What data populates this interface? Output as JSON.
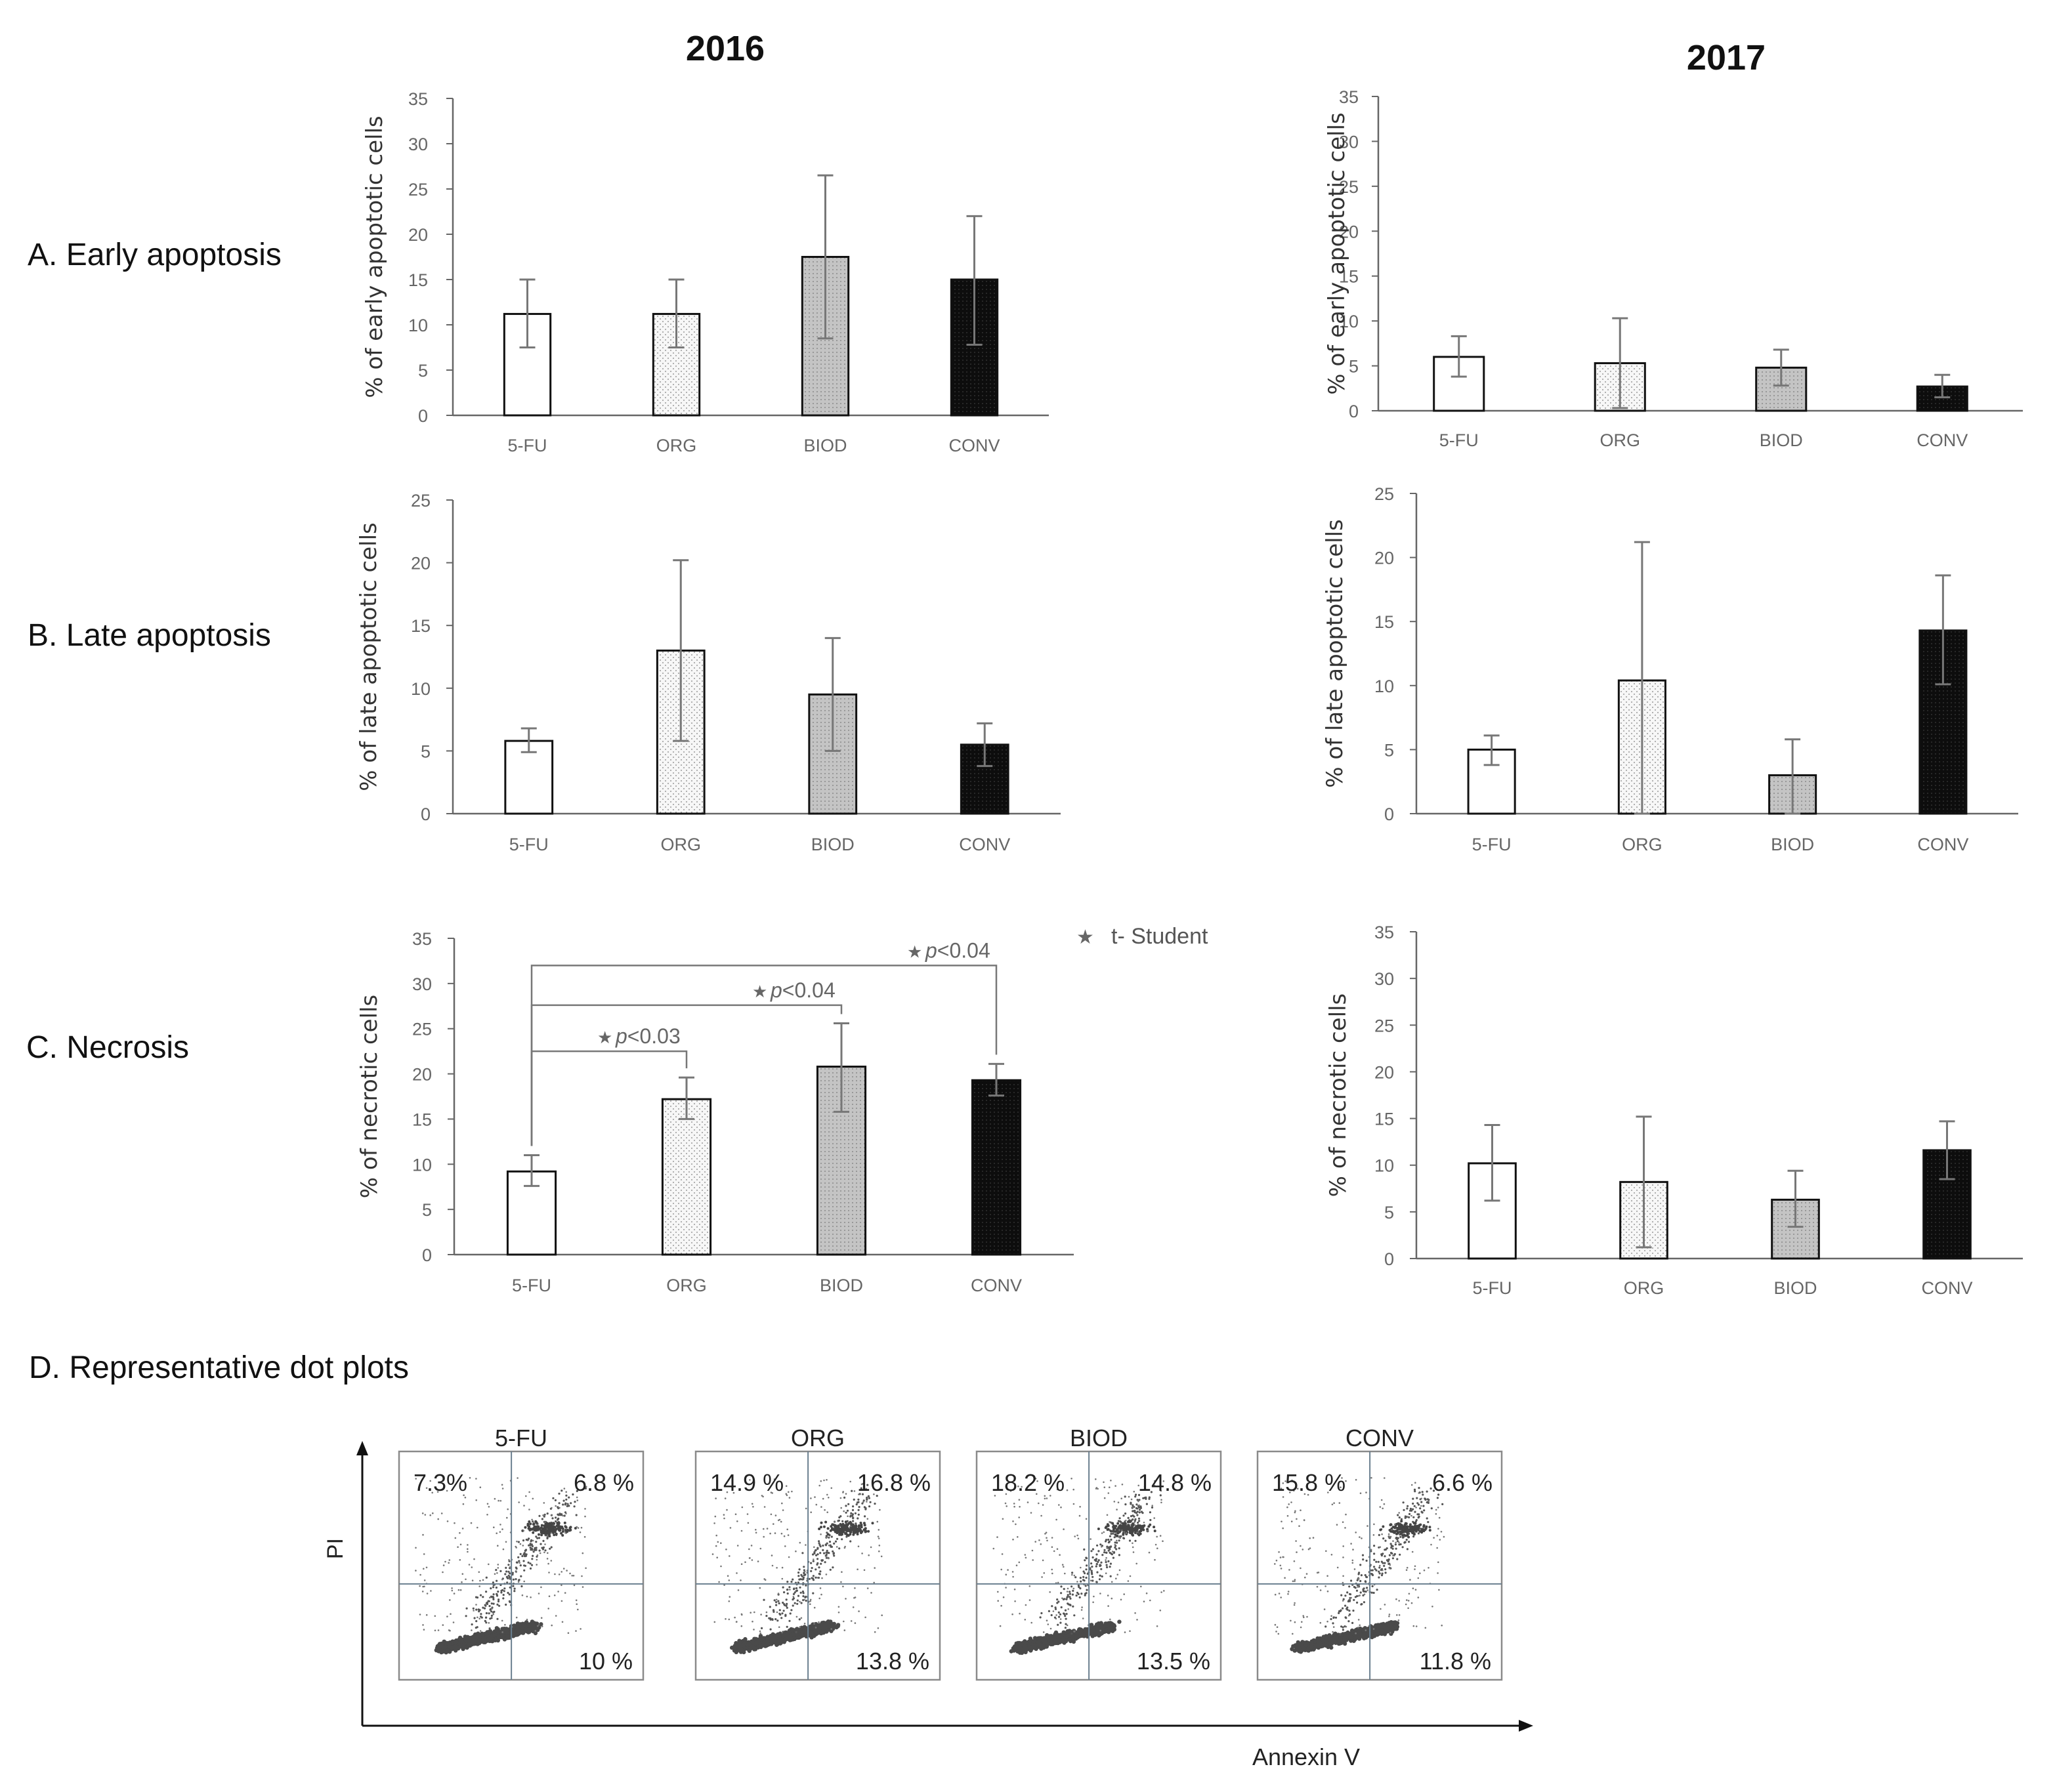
{
  "header": {
    "year_left": "2016",
    "year_right": "2017"
  },
  "rows": [
    {
      "label": "A. Early apoptosis"
    },
    {
      "label": "B. Late apoptosis"
    },
    {
      "label": "C. Necrosis"
    },
    {
      "label": "D. Representative  dot plots"
    }
  ],
  "legend": {
    "symbol": "★",
    "text": "t- Student"
  },
  "colors": {
    "five_fu": "#ffffff",
    "org": "#f2f2f2",
    "biod": "#c8c8c8",
    "conv": "#111111",
    "axis": "#555555"
  },
  "chart_data": [
    {
      "id": "A-2016",
      "type": "bar",
      "title": "",
      "ylabel": "% of early apoptotic cells",
      "ylim": [
        0,
        35
      ],
      "yticks": [
        0,
        5,
        10,
        15,
        20,
        25,
        30,
        35
      ],
      "categories": [
        "5-FU",
        "ORG",
        "BIOD",
        "CONV"
      ],
      "values": [
        11.2,
        11.2,
        17.5,
        15.0
      ],
      "err_upper": [
        15.0,
        15.0,
        26.5,
        22.0
      ],
      "err_lower": [
        7.5,
        7.5,
        8.5,
        7.8
      ]
    },
    {
      "id": "A-2017",
      "type": "bar",
      "title": "",
      "ylabel": "% of early apoptotic cells",
      "ylim": [
        0,
        35
      ],
      "yticks": [
        0,
        5,
        10,
        15,
        20,
        25,
        30,
        35
      ],
      "categories": [
        "5-FU",
        "ORG",
        "BIOD",
        "CONV"
      ],
      "values": [
        6.0,
        5.3,
        4.8,
        2.7
      ],
      "err_upper": [
        8.3,
        10.3,
        6.8,
        4.0
      ],
      "err_lower": [
        3.8,
        0.3,
        2.8,
        1.5
      ]
    },
    {
      "id": "B-2016",
      "type": "bar",
      "title": "",
      "ylabel": "% of late apoptotic cells",
      "ylim": [
        0,
        25
      ],
      "yticks": [
        0,
        5,
        10,
        15,
        20,
        25
      ],
      "categories": [
        "5-FU",
        "ORG",
        "BIOD",
        "CONV"
      ],
      "values": [
        5.8,
        13.0,
        9.5,
        5.5
      ],
      "err_upper": [
        6.8,
        20.2,
        14.0,
        7.2
      ],
      "err_lower": [
        4.9,
        5.8,
        5.0,
        3.8
      ]
    },
    {
      "id": "B-2017",
      "type": "bar",
      "title": "",
      "ylabel": "% of late apoptotic cells",
      "ylim": [
        0,
        25
      ],
      "yticks": [
        0,
        5,
        10,
        15,
        20,
        25
      ],
      "categories": [
        "5-FU",
        "ORG",
        "BIOD",
        "CONV"
      ],
      "values": [
        5.0,
        10.4,
        3.0,
        14.3
      ],
      "err_upper": [
        6.1,
        21.2,
        5.8,
        18.6
      ],
      "err_lower": [
        3.8,
        0.0,
        0.0,
        10.1
      ]
    },
    {
      "id": "C-2016",
      "type": "bar",
      "title": "",
      "ylabel": "% of necrotic cells",
      "ylim": [
        0,
        35
      ],
      "yticks": [
        0,
        5,
        10,
        15,
        20,
        25,
        30,
        35
      ],
      "categories": [
        "5-FU",
        "ORG",
        "BIOD",
        "CONV"
      ],
      "values": [
        9.2,
        17.2,
        20.8,
        19.3
      ],
      "err_upper": [
        11.0,
        19.6,
        25.6,
        21.1
      ],
      "err_lower": [
        7.6,
        15.0,
        15.8,
        17.6
      ],
      "annotations": [
        {
          "from": "5-FU",
          "to": "ORG",
          "star": "★",
          "label": "p",
          "text": "<0.03",
          "level": 22.5
        },
        {
          "from": "5-FU",
          "to": "BIOD",
          "star": "★",
          "label": "p",
          "text": "<0.04",
          "level": 27.6
        },
        {
          "from": "5-FU",
          "to": "CONV",
          "star": "★",
          "label": "p",
          "text": "<0.04",
          "level": 32.0
        }
      ]
    },
    {
      "id": "C-2017",
      "type": "bar",
      "title": "",
      "ylabel": "% of necrotic cells",
      "ylim": [
        0,
        35
      ],
      "yticks": [
        0,
        5,
        10,
        15,
        20,
        25,
        30,
        35
      ],
      "categories": [
        "5-FU",
        "ORG",
        "BIOD",
        "CONV"
      ],
      "values": [
        10.2,
        8.2,
        6.3,
        11.6
      ],
      "err_upper": [
        14.3,
        15.2,
        9.4,
        14.7
      ],
      "err_lower": [
        6.2,
        1.2,
        3.4,
        8.5
      ]
    }
  ],
  "dot_plots": {
    "ylabel": "PI",
    "xlabel": "Annexin V",
    "panels": [
      {
        "title": "5-FU",
        "ul": "7.3%",
        "ur": "6.8 %",
        "lr": "10 %"
      },
      {
        "title": "ORG",
        "ul": "14.9 %",
        "ur": "16.8 %",
        "lr": "13.8 %"
      },
      {
        "title": "BIOD",
        "ul": "18.2 %",
        "ur": "14.8 %",
        "lr": "13.5 %"
      },
      {
        "title": "CONV",
        "ul": "15.8 %",
        "ur": "6.6 %",
        "lr": "11.8 %"
      }
    ]
  }
}
